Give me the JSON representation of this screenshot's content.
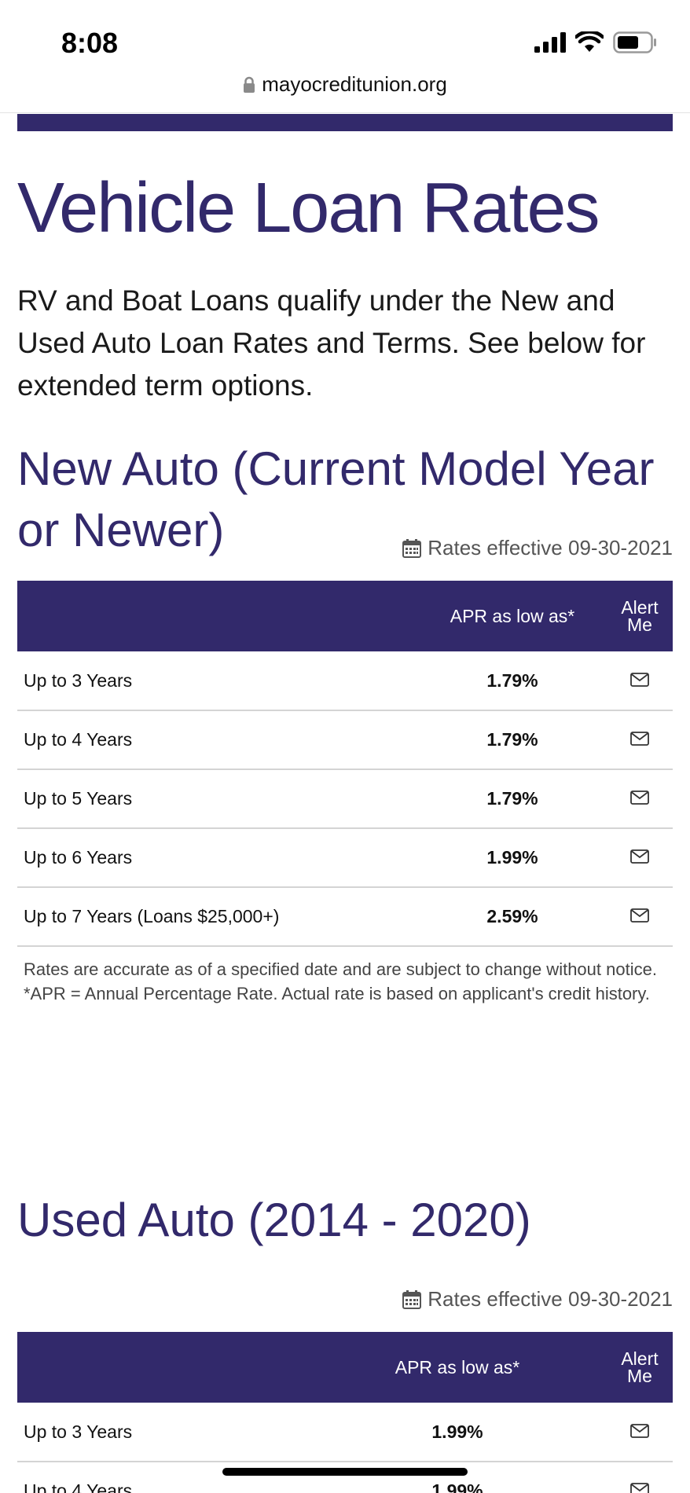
{
  "status_bar": {
    "time": "8:08"
  },
  "browser": {
    "url": "mayocreditunion.org"
  },
  "page": {
    "title": "Vehicle Loan Rates",
    "intro": "RV and Boat Loans qualify under the New and Used Auto Loan Rates and Terms. See below for extended term options."
  },
  "new_auto": {
    "title": "New Auto (Current Model Year or Newer)",
    "effective": "Rates effective 09-30-2021",
    "header": {
      "term": "",
      "apr": "APR as low as*",
      "alert_line1": "Alert",
      "alert_line2": "Me"
    },
    "rows": [
      {
        "term": "Up to 3 Years",
        "apr": "1.79%"
      },
      {
        "term": "Up to 4 Years",
        "apr": "1.79%"
      },
      {
        "term": "Up to 5 Years",
        "apr": "1.79%"
      },
      {
        "term": "Up to 6 Years",
        "apr": "1.99%"
      },
      {
        "term": "Up to 7 Years (Loans $25,000+)",
        "apr": "2.59%"
      }
    ],
    "disclaimer_1": "Rates are accurate as of a specified date and are subject to change without notice.",
    "disclaimer_2": "*APR = Annual Percentage Rate. Actual rate is based on applicant's credit history."
  },
  "used_auto": {
    "title": "Used Auto (2014 - 2020)",
    "effective": "Rates effective 09-30-2021",
    "header": {
      "term": "",
      "apr": "APR as low as*",
      "alert_line1": "Alert",
      "alert_line2": "Me"
    },
    "rows": [
      {
        "term": "Up to 3 Years",
        "apr": "1.99%"
      },
      {
        "term": "Up to 4 Years",
        "apr": "1.99%"
      }
    ]
  },
  "colors": {
    "brand": "#32296b"
  },
  "icons": {
    "lock": "lock-icon",
    "calendar": "calendar-icon",
    "alert": "envelope-icon"
  }
}
